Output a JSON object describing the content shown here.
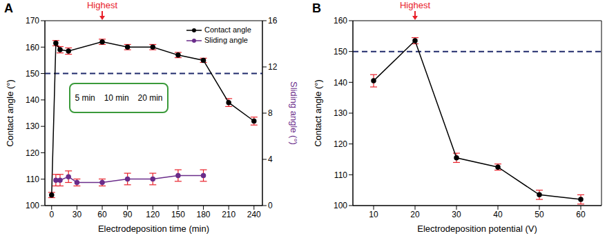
{
  "chart_data": [
    {
      "title": "A",
      "type": "line",
      "x_label": "Electrodeposition time (min)",
      "y_label": "Contact angle (°)",
      "y2_label": "Sliding angle (°)",
      "xlim": [
        -8,
        250
      ],
      "xticks": [
        0,
        30,
        60,
        90,
        120,
        150,
        180,
        210,
        240
      ],
      "ylim": [
        100,
        170
      ],
      "yticks": [
        100,
        110,
        120,
        130,
        140,
        150,
        160,
        170
      ],
      "y2lim": [
        0,
        16
      ],
      "y2ticks": [
        0,
        4,
        8,
        12,
        16
      ],
      "legend": "upper right",
      "series": [
        {
          "name": "Contact angle",
          "color": "#000000",
          "marker": "circle",
          "line_style": "solid",
          "x": [
            0,
            5,
            10,
            20,
            60,
            90,
            120,
            150,
            180,
            210,
            240
          ],
          "values": [
            104,
            161.5,
            159,
            158.5,
            162,
            160,
            160,
            157,
            155,
            139,
            132
          ],
          "errors": [
            1,
            1,
            1.2,
            1.2,
            1,
            1,
            1,
            1,
            0.8,
            1.5,
            1.5
          ]
        },
        {
          "name": "Sliding angle",
          "color": "#6a2c8a",
          "marker": "circle",
          "line_style": "solid",
          "axis": "y2",
          "x": [
            5,
            10,
            20,
            30,
            60,
            90,
            120,
            150,
            180
          ],
          "values": [
            2.2,
            2.2,
            2.5,
            2.0,
            2.0,
            2.3,
            2.3,
            2.6,
            2.6
          ],
          "errors": [
            0.5,
            0.5,
            0.5,
            0.3,
            0.3,
            0.5,
            0.5,
            0.5,
            0.5
          ]
        }
      ],
      "reference_line": {
        "y": 150,
        "color": "#1f2a6b",
        "line_style": "dashed"
      },
      "annotations": [
        {
          "text": "Highest",
          "x": 60,
          "color": "#e8202a"
        }
      ],
      "inset_labels": [
        "5 min",
        "10 min",
        "20 min"
      ]
    },
    {
      "title": "B",
      "type": "line",
      "x_label": "Electrodeposition potential (V)",
      "y_label": "Contact angle (°)",
      "xlim": [
        5,
        65
      ],
      "xticks": [
        10,
        20,
        30,
        40,
        50,
        60
      ],
      "ylim": [
        100,
        160
      ],
      "yticks": [
        100,
        110,
        120,
        130,
        140,
        150,
        160
      ],
      "series": [
        {
          "color": "#000000",
          "marker": "circle",
          "line_style": "solid",
          "x": [
            10,
            20,
            30,
            40,
            50,
            60
          ],
          "values": [
            140.5,
            153.5,
            115.5,
            112.5,
            103.5,
            102
          ],
          "errors": [
            2,
            1,
            1.5,
            1,
            1.5,
            1.5
          ]
        }
      ],
      "reference_line": {
        "y": 150,
        "color": "#1f2a6b",
        "line_style": "dashed"
      },
      "annotations": [
        {
          "text": "Highest",
          "x": 20,
          "color": "#e8202a"
        }
      ]
    }
  ]
}
